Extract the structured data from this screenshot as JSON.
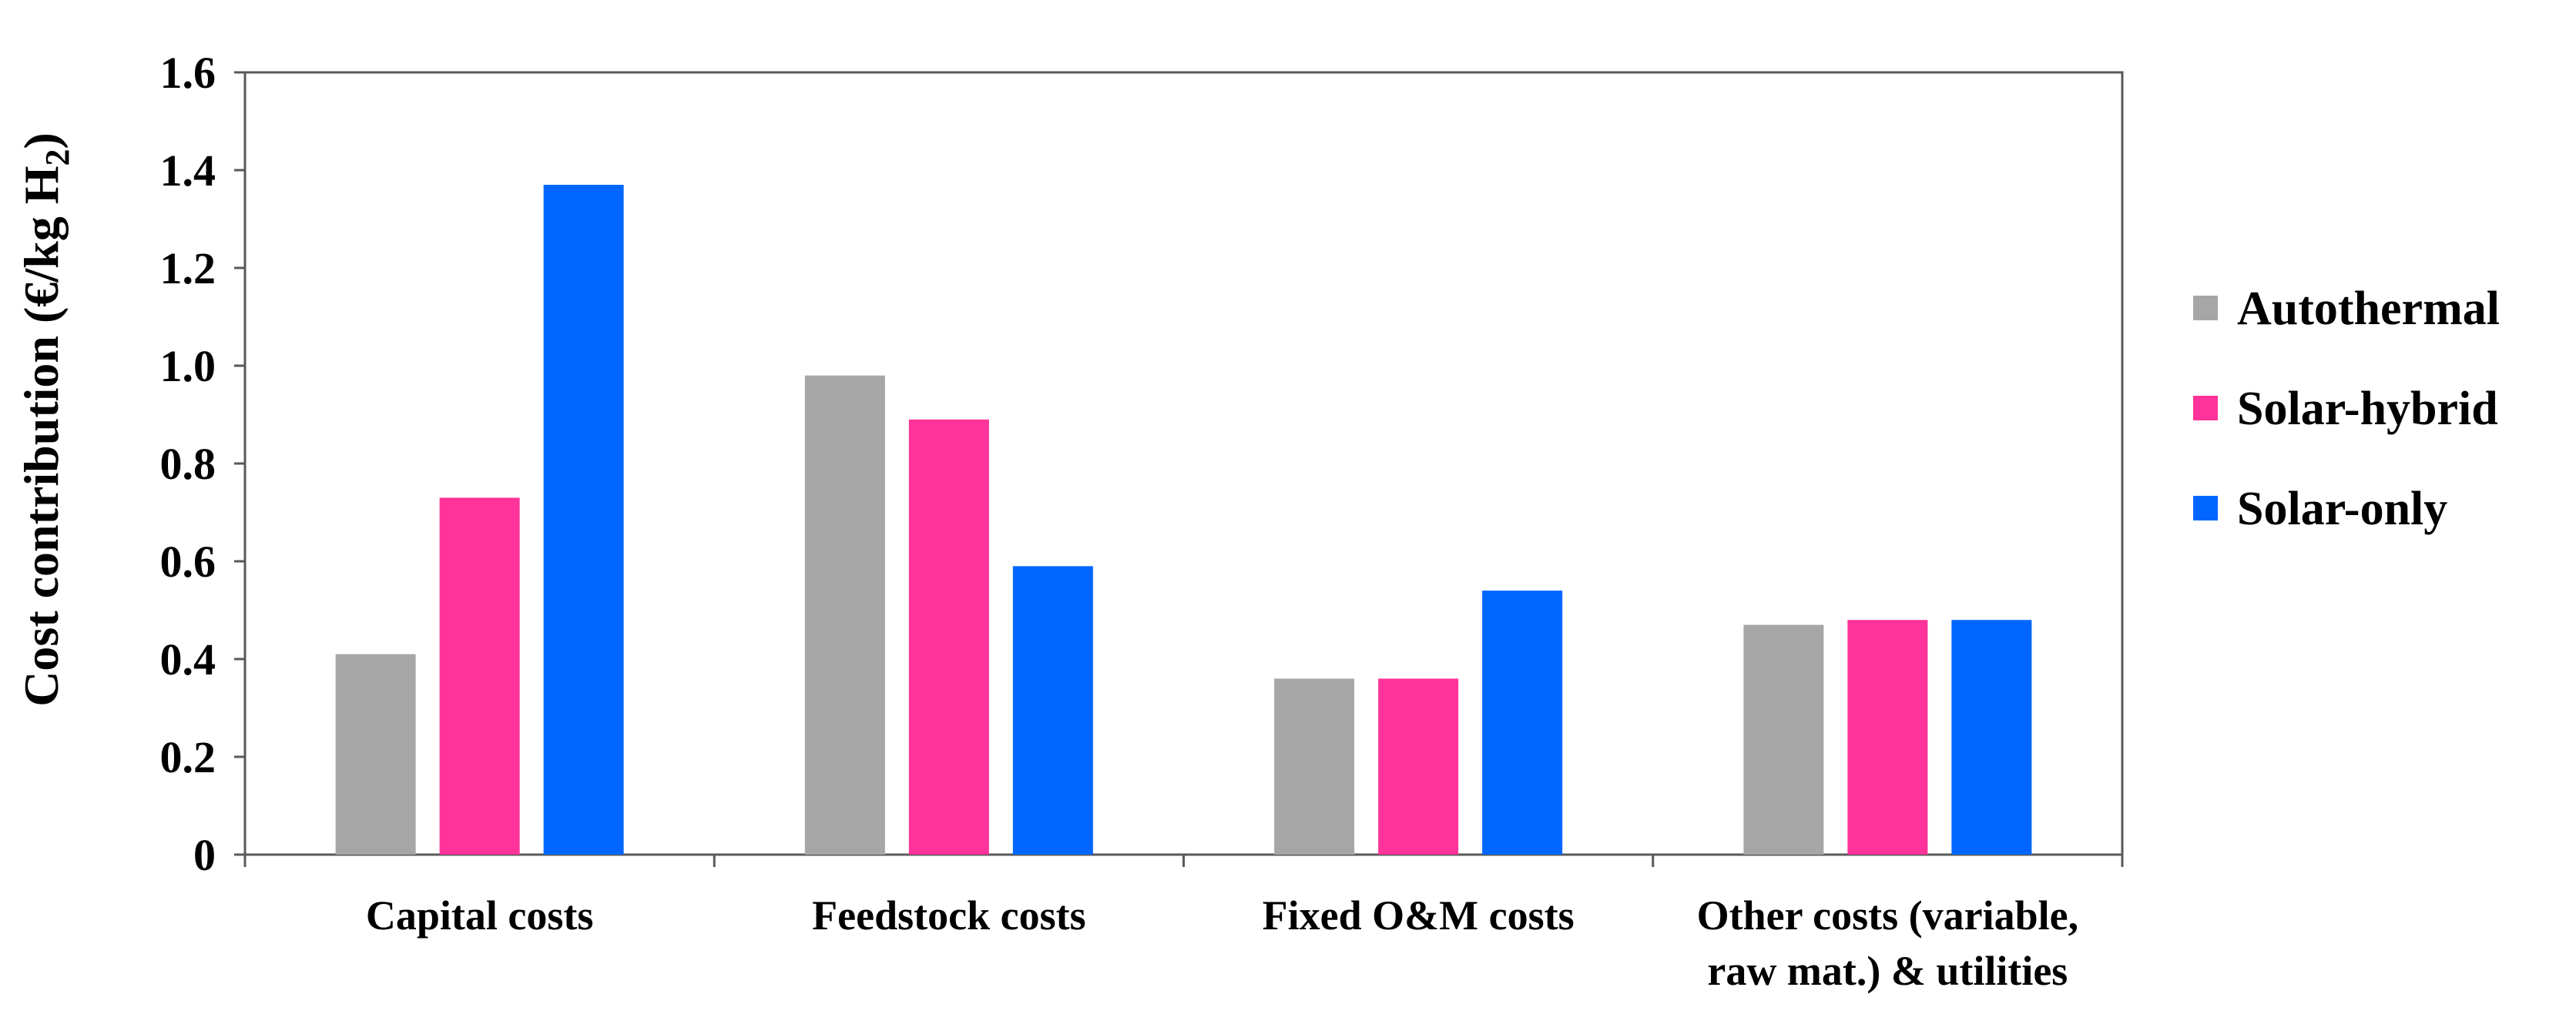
{
  "chart_data": {
    "type": "bar",
    "title": "",
    "xlabel": "",
    "ylabel": {
      "prefix": "Cost contribution (€/kg H",
      "subscript": "2",
      "suffix": ")"
    },
    "ylim": [
      0,
      1.6
    ],
    "yticks": [
      {
        "value": 0,
        "label": "0"
      },
      {
        "value": 0.2,
        "label": "0.2"
      },
      {
        "value": 0.4,
        "label": "0.4"
      },
      {
        "value": 0.6,
        "label": "0.6"
      },
      {
        "value": 0.8,
        "label": "0.8"
      },
      {
        "value": 1.0,
        "label": "1.0"
      },
      {
        "value": 1.2,
        "label": "1.2"
      },
      {
        "value": 1.4,
        "label": "1.4"
      },
      {
        "value": 1.6,
        "label": "1.6"
      }
    ],
    "categories": [
      [
        "Capital costs"
      ],
      [
        "Feedstock costs"
      ],
      [
        "Fixed O&M costs"
      ],
      [
        "Other costs (variable,",
        "raw mat.) & utilities"
      ]
    ],
    "series": [
      {
        "name": "Autothermal",
        "color": "#a6a6a6",
        "values": [
          0.41,
          0.98,
          0.36,
          0.47
        ]
      },
      {
        "name": "Solar-hybrid",
        "color": "#ff3399",
        "values": [
          0.73,
          0.89,
          0.36,
          0.48
        ]
      },
      {
        "name": "Solar-only",
        "color": "#0066ff",
        "values": [
          1.37,
          0.59,
          0.54,
          0.48
        ]
      }
    ],
    "legend_position": "right",
    "grid": false
  }
}
